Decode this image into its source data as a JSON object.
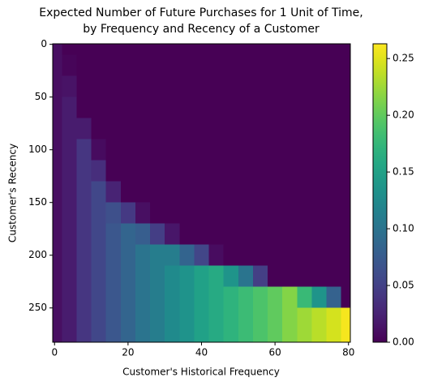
{
  "chart_data": {
    "type": "heatmap",
    "title": [
      "Expected Number of Future Purchases for 1 Unit of Time,",
      "by Frequency and Recency of a Customer"
    ],
    "x_label": "Customer's Historical Frequency",
    "y_label": "Customer's Recency",
    "colormap": "viridis",
    "x": [
      0,
      4,
      8,
      12,
      16,
      20,
      24,
      28,
      32,
      36,
      40,
      44,
      48,
      52,
      56,
      60,
      64,
      68,
      72,
      76,
      80
    ],
    "y": [
      0,
      20,
      40,
      60,
      80,
      100,
      120,
      140,
      160,
      180,
      200,
      220,
      240,
      260,
      280
    ],
    "values": [
      [
        0.01,
        0,
        0,
        0,
        0,
        0,
        0,
        0,
        0,
        0,
        0,
        0,
        0,
        0,
        0,
        0,
        0,
        0,
        0,
        0,
        0
      ],
      [
        0.01,
        0.003,
        0,
        0,
        0,
        0,
        0,
        0,
        0,
        0,
        0,
        0,
        0,
        0,
        0,
        0,
        0,
        0,
        0,
        0,
        0
      ],
      [
        0.01,
        0.013,
        0,
        0,
        0,
        0,
        0,
        0,
        0,
        0,
        0,
        0,
        0,
        0,
        0,
        0,
        0,
        0,
        0,
        0,
        0
      ],
      [
        0.01,
        0.02,
        0,
        0,
        0,
        0,
        0,
        0,
        0,
        0,
        0,
        0,
        0,
        0,
        0,
        0,
        0,
        0,
        0,
        0,
        0
      ],
      [
        0.01,
        0.02,
        0.02,
        0,
        0,
        0,
        0,
        0,
        0,
        0,
        0,
        0,
        0,
        0,
        0,
        0,
        0,
        0,
        0,
        0,
        0
      ],
      [
        0.01,
        0.02,
        0.04,
        0.007,
        0,
        0,
        0,
        0,
        0,
        0,
        0,
        0,
        0,
        0,
        0,
        0,
        0,
        0,
        0,
        0,
        0
      ],
      [
        0.01,
        0.02,
        0.04,
        0.034,
        0,
        0,
        0,
        0,
        0,
        0,
        0,
        0,
        0,
        0,
        0,
        0,
        0,
        0,
        0,
        0,
        0
      ],
      [
        0.01,
        0.02,
        0.04,
        0.055,
        0.025,
        0,
        0,
        0,
        0,
        0,
        0,
        0,
        0,
        0,
        0,
        0,
        0,
        0,
        0,
        0,
        0
      ],
      [
        0.01,
        0.02,
        0.04,
        0.055,
        0.064,
        0.043,
        0.01,
        0,
        0,
        0,
        0,
        0,
        0,
        0,
        0,
        0,
        0,
        0,
        0,
        0,
        0
      ],
      [
        0.01,
        0.02,
        0.04,
        0.055,
        0.07,
        0.085,
        0.077,
        0.047,
        0.015,
        0,
        0,
        0,
        0,
        0,
        0,
        0,
        0,
        0,
        0,
        0,
        0
      ],
      [
        0.01,
        0.02,
        0.04,
        0.055,
        0.07,
        0.085,
        0.1,
        0.11,
        0.11,
        0.084,
        0.054,
        0.008,
        0,
        0,
        0,
        0,
        0,
        0,
        0,
        0,
        0
      ],
      [
        0.01,
        0.02,
        0.04,
        0.055,
        0.07,
        0.085,
        0.1,
        0.11,
        0.125,
        0.135,
        0.15,
        0.16,
        0.136,
        0.101,
        0.048,
        0,
        0,
        0,
        0,
        0,
        0
      ],
      [
        0.01,
        0.02,
        0.04,
        0.055,
        0.07,
        0.085,
        0.1,
        0.11,
        0.125,
        0.135,
        0.15,
        0.16,
        0.17,
        0.18,
        0.19,
        0.2,
        0.215,
        0.178,
        0.136,
        0.081,
        0
      ],
      [
        0.01,
        0.02,
        0.04,
        0.055,
        0.07,
        0.085,
        0.1,
        0.11,
        0.125,
        0.135,
        0.15,
        0.16,
        0.17,
        0.18,
        0.19,
        0.2,
        0.215,
        0.225,
        0.235,
        0.245,
        0.26
      ],
      [
        0.01,
        0.02,
        0.04,
        0.055,
        0.07,
        0.085,
        0.1,
        0.11,
        0.125,
        0.135,
        0.15,
        0.16,
        0.17,
        0.18,
        0.19,
        0.2,
        0.215,
        0.225,
        0.235,
        0.245,
        0.26
      ]
    ],
    "xlim": [
      -0.5,
      80.5
    ],
    "ylim": [
      282.5,
      -0.5
    ],
    "xticks": [
      0,
      20,
      40,
      60,
      80
    ],
    "yticks": [
      0,
      50,
      100,
      150,
      200,
      250
    ],
    "clim": [
      0,
      0.263
    ],
    "cticks": [
      {
        "value": 0,
        "label": "0.00"
      },
      {
        "value": 0.05,
        "label": "0.05"
      },
      {
        "value": 0.1,
        "label": "0.10"
      },
      {
        "value": 0.15,
        "label": "0.15"
      },
      {
        "value": 0.2,
        "label": "0.20"
      },
      {
        "value": 0.25,
        "label": "0.25"
      }
    ]
  }
}
